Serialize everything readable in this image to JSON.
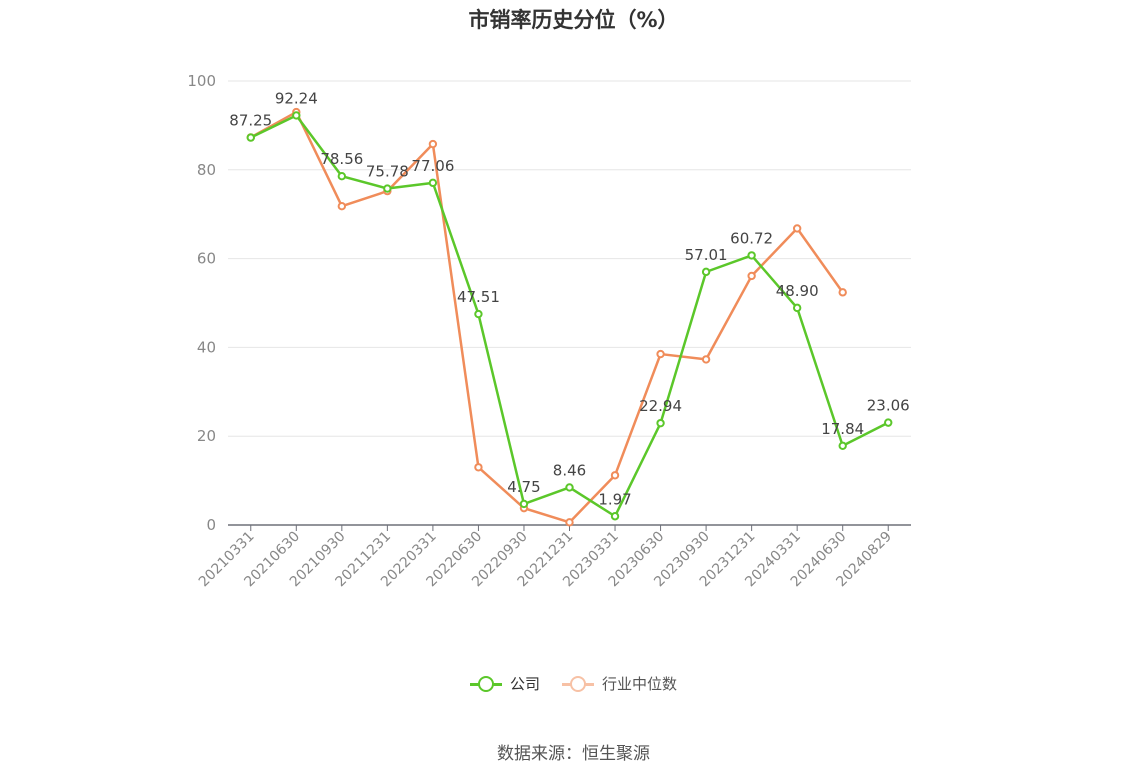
{
  "title": "市销率历史分位（%）",
  "source": "数据来源：恒生聚源",
  "chart_data": {
    "type": "line",
    "title": "市销率历史分位（%）",
    "categories": [
      "20210331",
      "20210630",
      "20210930",
      "20211231",
      "20220331",
      "20220630",
      "20220930",
      "20221231",
      "20230331",
      "20230630",
      "20230930",
      "20231231",
      "20240331",
      "20240630",
      "20240829"
    ],
    "ylim": [
      0,
      100
    ],
    "yticks": [
      0,
      20,
      40,
      60,
      80,
      100
    ],
    "grid": true,
    "legend_position": "bottom",
    "series": [
      {
        "name": "公司",
        "color": "#5bc72a",
        "show_labels": true,
        "values": [
          87.25,
          92.24,
          78.56,
          75.78,
          77.06,
          47.51,
          4.75,
          8.46,
          1.97,
          22.94,
          57.01,
          60.72,
          48.9,
          17.84,
          23.06
        ],
        "labels": [
          "87.25",
          "92.24",
          "78.56",
          "75.78",
          "77.06",
          "47.51",
          "4.75",
          "8.46",
          "1.97",
          "22.94",
          "57.01",
          "60.72",
          "48.90",
          "17.84",
          "23.06"
        ]
      },
      {
        "name": "行业中位数",
        "color": "#f08c5a",
        "show_labels": false,
        "values": [
          87.3,
          93.0,
          71.8,
          75.2,
          85.8,
          13.0,
          3.8,
          0.6,
          11.2,
          38.5,
          37.3,
          56.1,
          66.8,
          52.4,
          null
        ]
      }
    ]
  }
}
